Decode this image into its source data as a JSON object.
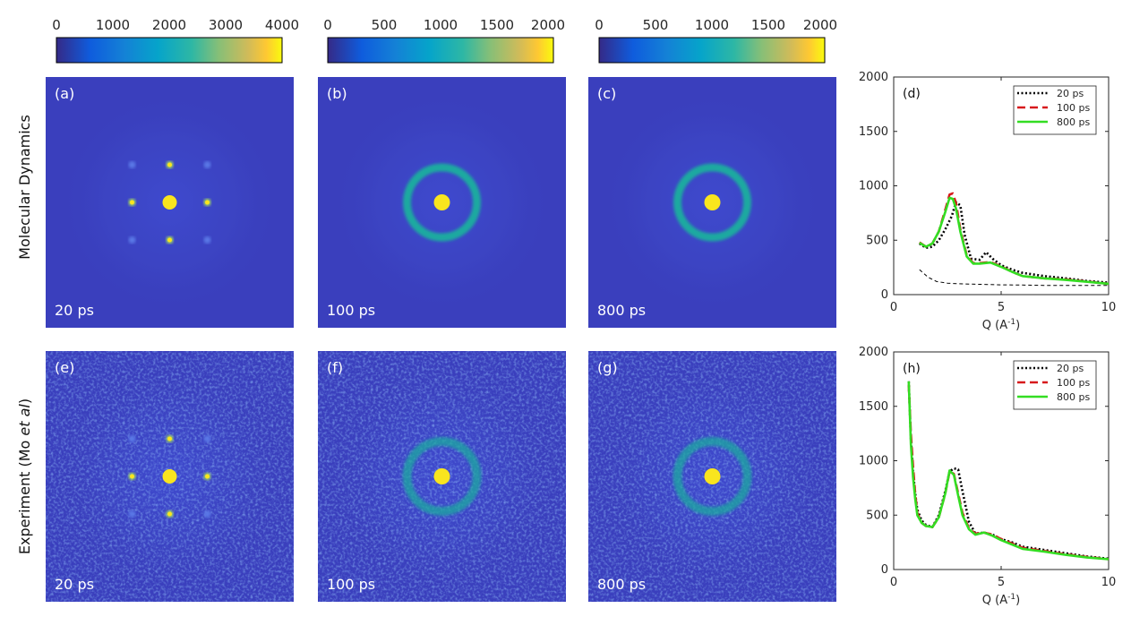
{
  "row_labels": {
    "top": "Molecular Dynamics",
    "bottom_pre": "Experiment (Mo ",
    "bottom_em": "et al",
    "bottom_post": ")"
  },
  "colorbars": [
    {
      "ticks": [
        "0",
        "1000",
        "2000",
        "3000",
        "4000"
      ]
    },
    {
      "ticks": [
        "0",
        "500",
        "1000",
        "1500",
        "2000"
      ]
    },
    {
      "ticks": [
        "0",
        "500",
        "1000",
        "1500",
        "2000"
      ]
    }
  ],
  "panels": [
    {
      "label": "(a)",
      "time": "20 ps"
    },
    {
      "label": "(b)",
      "time": "100 ps"
    },
    {
      "label": "(c)",
      "time": "800 ps"
    },
    {
      "label": "(e)",
      "time": "20 ps"
    },
    {
      "label": "(f)",
      "time": "100 ps"
    },
    {
      "label": "(g)",
      "time": "800 ps"
    }
  ],
  "colors": {
    "background": "#3a3fbd",
    "ring": "#1fa9a0",
    "spot": "#f9e51e",
    "series_20ps": "#000000",
    "series_100ps": "#d7191c",
    "series_800ps": "#33dd22"
  },
  "chart_data": [
    {
      "type": "line",
      "panel_label": "(d)",
      "xlabel": "Q (A",
      "xlabel_sup": "-1",
      "xlabel_end": ")",
      "xlim": [
        0,
        10
      ],
      "ylim": [
        0,
        2000
      ],
      "xticks": [
        "0",
        "5",
        "10"
      ],
      "yticks": [
        "0",
        "500",
        "1000",
        "1500",
        "2000"
      ],
      "legend_position": "top-right",
      "series": [
        {
          "name": "20 ps",
          "style": "dotted",
          "x": [
            1.2,
            1.5,
            1.8,
            2.1,
            2.4,
            2.7,
            2.9,
            3.1,
            3.3,
            3.6,
            4.0,
            4.3,
            4.6,
            5.0,
            5.5,
            6.0,
            7.0,
            8.0,
            9.0,
            10.0
          ],
          "y": [
            470,
            430,
            440,
            500,
            600,
            720,
            850,
            820,
            550,
            330,
            320,
            390,
            330,
            270,
            230,
            200,
            170,
            150,
            125,
            110
          ]
        },
        {
          "name": "100 ps",
          "style": "dashed",
          "x": [
            1.2,
            1.5,
            1.8,
            2.1,
            2.4,
            2.6,
            2.75,
            2.9,
            3.1,
            3.4,
            3.7,
            4.0,
            4.5,
            5.0,
            5.5,
            6.0,
            7.0,
            8.0,
            9.0,
            10.0
          ],
          "y": [
            480,
            440,
            470,
            580,
            780,
            920,
            930,
            840,
            600,
            360,
            290,
            290,
            300,
            260,
            210,
            170,
            150,
            140,
            120,
            100
          ]
        },
        {
          "name": "800 ps",
          "style": "solid",
          "x": [
            1.2,
            1.5,
            1.8,
            2.1,
            2.4,
            2.6,
            2.75,
            2.9,
            3.1,
            3.4,
            3.7,
            4.0,
            4.5,
            5.0,
            5.5,
            6.0,
            7.0,
            8.0,
            9.0,
            10.0
          ],
          "y": [
            475,
            440,
            470,
            580,
            760,
            890,
            880,
            790,
            580,
            350,
            285,
            285,
            295,
            255,
            210,
            170,
            150,
            135,
            118,
            100
          ]
        },
        {
          "name": "",
          "style": "thin-dashed",
          "x": [
            1.2,
            1.6,
            2.0,
            2.5,
            3.0,
            4.0,
            5.0,
            6.0,
            7.0,
            8.0,
            9.0,
            10.0
          ],
          "y": [
            230,
            160,
            120,
            105,
            100,
            95,
            90,
            88,
            85,
            85,
            85,
            85
          ]
        }
      ]
    },
    {
      "type": "line",
      "panel_label": "(h)",
      "xlabel": "Q (A",
      "xlabel_sup": "-1",
      "xlabel_end": ")",
      "xlim": [
        0,
        10
      ],
      "ylim": [
        0,
        2000
      ],
      "xticks": [
        "0",
        "5",
        "10"
      ],
      "yticks": [
        "0",
        "500",
        "1000",
        "1500",
        "2000"
      ],
      "legend_position": "top-right",
      "series": [
        {
          "name": "20 ps",
          "style": "dotted",
          "x": [
            0.7,
            0.8,
            0.9,
            1.0,
            1.1,
            1.3,
            1.5,
            1.8,
            2.1,
            2.4,
            2.6,
            2.8,
            3.0,
            3.2,
            3.5,
            3.8,
            4.2,
            4.6,
            5.0,
            5.5,
            6.0,
            7.0,
            8.0,
            9.0,
            10.0
          ],
          "y": [
            1730,
            1200,
            900,
            700,
            550,
            450,
            410,
            390,
            500,
            720,
            900,
            930,
            920,
            720,
            440,
            330,
            340,
            320,
            280,
            250,
            210,
            180,
            150,
            120,
            100
          ]
        },
        {
          "name": "100 ps",
          "style": "dashed",
          "x": [
            0.7,
            0.8,
            0.9,
            1.0,
            1.1,
            1.3,
            1.5,
            1.8,
            2.1,
            2.4,
            2.6,
            2.8,
            3.0,
            3.2,
            3.5,
            3.8,
            4.2,
            4.6,
            5.0,
            5.5,
            6.0,
            7.0,
            8.0,
            9.0,
            10.0
          ],
          "y": [
            1700,
            1250,
            950,
            700,
            520,
            430,
            400,
            390,
            480,
            700,
            900,
            880,
            700,
            520,
            380,
            330,
            340,
            320,
            280,
            240,
            200,
            170,
            140,
            115,
            95
          ]
        },
        {
          "name": "800 ps",
          "style": "solid",
          "x": [
            0.7,
            0.8,
            0.9,
            1.0,
            1.1,
            1.3,
            1.5,
            1.8,
            2.1,
            2.4,
            2.6,
            2.8,
            3.0,
            3.2,
            3.5,
            3.8,
            4.2,
            4.6,
            5.0,
            5.5,
            6.0,
            7.0,
            8.0,
            9.0,
            10.0
          ],
          "y": [
            1730,
            1150,
            850,
            650,
            500,
            430,
            400,
            390,
            480,
            700,
            910,
            870,
            680,
            500,
            370,
            320,
            340,
            310,
            270,
            230,
            190,
            165,
            135,
            110,
            95
          ]
        }
      ]
    }
  ]
}
